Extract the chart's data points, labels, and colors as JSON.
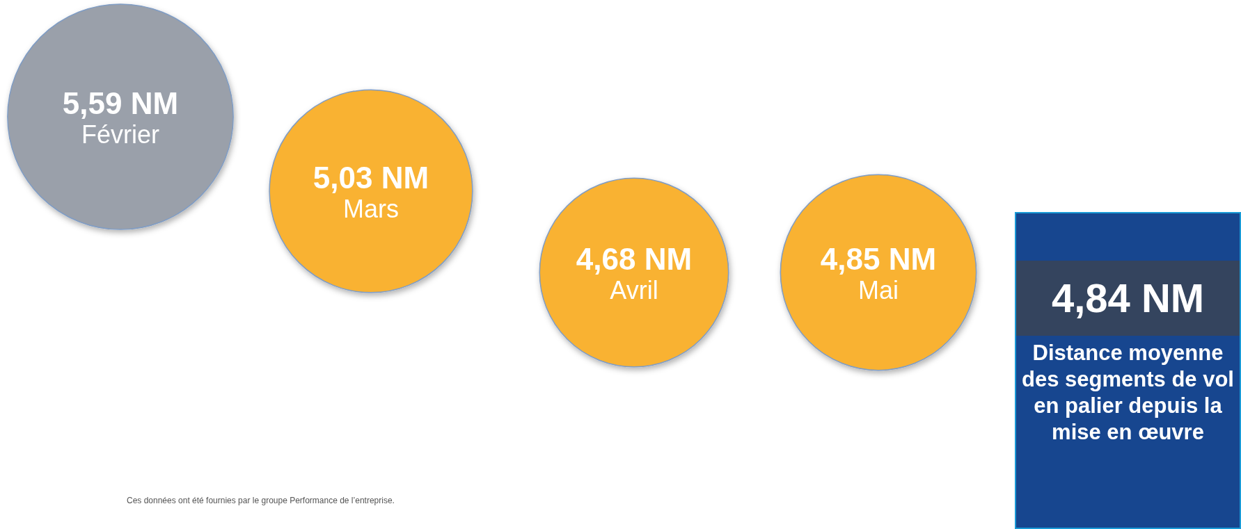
{
  "chart_data": [
    {
      "type": "other",
      "categories": [
        "Février",
        "Mars",
        "Avril",
        "Mai"
      ],
      "values": [
        5.59,
        5.03,
        4.68,
        4.85
      ],
      "value_labels": [
        "5,59 NM",
        "5,03 NM",
        "4,68 NM",
        "4,85 NM"
      ],
      "colors": [
        "#9aa0aa",
        "#f9b233",
        "#f9b233",
        "#f9b233"
      ],
      "annotations": [
        "Ces données ont été fournies par le groupe Performance de l’entreprise."
      ]
    },
    {
      "type": "other",
      "title": "4,84 NM",
      "subtitle": "Distance moyenne des segments de vol en palier depuis la mise en œuvre"
    }
  ]
}
